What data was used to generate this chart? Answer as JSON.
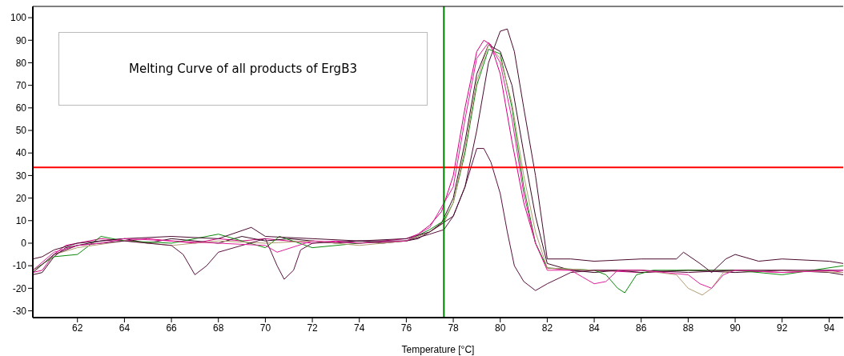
{
  "chart_data": {
    "type": "line",
    "title": "Melting Curve of all products of ErgB3",
    "xlabel": "Temperature [°C]",
    "xlim": [
      60.1,
      94.6
    ],
    "xticks": [
      62,
      64,
      66,
      68,
      70,
      72,
      74,
      76,
      78,
      80,
      82,
      84,
      86,
      88,
      90,
      92,
      94
    ],
    "ylim": [
      -33,
      105
    ],
    "yticks": [
      -30,
      -20,
      -10,
      0,
      10,
      20,
      30,
      40,
      50,
      60,
      70,
      80,
      90,
      100
    ],
    "marker": "none",
    "line_style": "solid",
    "ref_lines": [
      {
        "axis": "y",
        "value": 33.6,
        "color": "#ff0000"
      },
      {
        "axis": "x",
        "value": 77.6,
        "color": "#008000"
      }
    ],
    "series": [
      {
        "color": "#d4007f",
        "x": [
          60.1,
          60.5,
          61,
          61.5,
          62,
          63,
          64,
          65,
          66,
          67,
          68,
          69,
          70,
          71,
          72,
          73,
          74,
          75,
          76,
          76.5,
          77,
          77.5,
          78,
          78.5,
          79,
          79.3,
          79.6,
          80,
          80.5,
          81,
          81.5,
          82,
          83,
          84,
          86,
          88,
          90,
          92,
          94,
          94.6
        ],
        "values": [
          -13,
          -12,
          -5,
          -1,
          0,
          2,
          1,
          2,
          1,
          0,
          2,
          1,
          2,
          1,
          0,
          1,
          0,
          1,
          2,
          4,
          8,
          14,
          30,
          60,
          85,
          90,
          88,
          75,
          45,
          18,
          0,
          -11,
          -12,
          -12,
          -13,
          -12,
          -12,
          -13,
          -12,
          -13
        ]
      },
      {
        "color": "#3a0a24",
        "x": [
          60.1,
          60.5,
          61,
          61.5,
          62,
          63,
          64,
          65,
          66,
          67,
          68,
          69,
          70,
          71,
          72,
          73,
          74,
          75,
          76,
          76.5,
          77,
          77.5,
          78,
          78.5,
          79,
          79.5,
          80,
          80.5,
          81,
          81.5,
          82,
          83,
          84,
          85,
          86,
          88,
          90,
          92,
          94,
          94.6
        ],
        "values": [
          -14,
          -13,
          -6,
          -2,
          -1,
          1,
          2,
          0,
          2,
          1,
          0,
          3,
          1,
          2,
          1,
          0,
          1,
          0,
          1,
          2,
          5,
          9,
          20,
          45,
          75,
          88,
          85,
          70,
          40,
          12,
          -9,
          -12,
          -13,
          -12,
          -13,
          -12,
          -13,
          -12,
          -13,
          -14
        ]
      },
      {
        "color": "#0a8a0a",
        "x": [
          60.1,
          61,
          62,
          63,
          64,
          66,
          68,
          69,
          70,
          70.6,
          72,
          74,
          76,
          77,
          77.6,
          78,
          78.5,
          79,
          79.5,
          80,
          80.5,
          81,
          81.5,
          82,
          84,
          84.5,
          85,
          85.3,
          85.8,
          86.5,
          88,
          90,
          92,
          94.6
        ],
        "values": [
          -12,
          -6,
          -5,
          3,
          1,
          0,
          4,
          1,
          -2,
          3,
          -2,
          0,
          1,
          6,
          10,
          18,
          40,
          70,
          86,
          84,
          60,
          25,
          0,
          -11,
          -12,
          -14,
          -20,
          -22,
          -14,
          -12,
          -12,
          -12,
          -14,
          -10
        ]
      },
      {
        "color": "#b39c72",
        "x": [
          60.1,
          61,
          62,
          64,
          66,
          68,
          70,
          72,
          74,
          76,
          77,
          77.6,
          78,
          78.5,
          79,
          79.5,
          80,
          80.5,
          81,
          81.5,
          82,
          84,
          86,
          87.5,
          88,
          88.6,
          89,
          89.5,
          90,
          92,
          94.6
        ],
        "values": [
          -13,
          -5,
          -2,
          1,
          -1,
          1,
          0,
          1,
          -1,
          1,
          5,
          9,
          18,
          42,
          72,
          88,
          82,
          62,
          30,
          5,
          -11,
          -12,
          -12,
          -14,
          -20,
          -23,
          -20,
          -13,
          -12,
          -12,
          -13
        ]
      },
      {
        "color": "#5a1040",
        "x": [
          60.1,
          61,
          62,
          64,
          66,
          66.5,
          67,
          67.5,
          68,
          70,
          70.5,
          70.8,
          71.2,
          71.5,
          72,
          74,
          76,
          77,
          77.6,
          78,
          78.5,
          79,
          79.3,
          79.6,
          80,
          80.3,
          80.6,
          81,
          81.5,
          82,
          83,
          84,
          86,
          88,
          90,
          94.6
        ],
        "values": [
          -13,
          -5,
          -1,
          1,
          -1,
          -5,
          -14,
          -10,
          -4,
          2,
          -10,
          -16,
          -12,
          -3,
          0,
          1,
          1,
          4,
          6,
          12,
          25,
          42,
          42,
          36,
          22,
          5,
          -10,
          -17,
          -21,
          -18,
          -13,
          -12,
          -12,
          -13,
          -12,
          -12
        ]
      },
      {
        "color": "#4a0a30",
        "x": [
          60.1,
          60.5,
          61,
          62,
          64,
          66,
          68,
          69.4,
          70,
          72,
          74,
          76,
          77,
          78,
          78.5,
          79,
          79.5,
          80,
          80.3,
          80.6,
          81,
          81.5,
          82,
          83,
          84,
          86,
          87.5,
          87.8,
          88.5,
          89,
          89.6,
          90,
          91,
          92,
          94,
          94.6
        ],
        "values": [
          -7,
          -6,
          -3,
          0,
          2,
          3,
          2,
          7,
          3,
          2,
          1,
          2,
          5,
          12,
          25,
          50,
          80,
          94,
          95,
          85,
          60,
          30,
          -7,
          -7,
          -8,
          -7,
          -7,
          -4,
          -9,
          -13,
          -7,
          -5,
          -8,
          -7,
          -8,
          -9
        ]
      },
      {
        "color": "#e0209a",
        "x": [
          60.1,
          61,
          62,
          63,
          64,
          66,
          68,
          70,
          70.5,
          72,
          74,
          76,
          77,
          78,
          78.5,
          79,
          79.5,
          80,
          80.5,
          81,
          81.5,
          82,
          83,
          83.5,
          84,
          84.5,
          85,
          86,
          87,
          88,
          88.5,
          89,
          89.5,
          90,
          92,
          94.6
        ],
        "values": [
          -12,
          -4,
          -1,
          0,
          2,
          1,
          0,
          -1,
          -4,
          1,
          0,
          1,
          7,
          25,
          55,
          82,
          89,
          80,
          55,
          22,
          0,
          -12,
          -12,
          -15,
          -18,
          -17,
          -12,
          -12,
          -13,
          -14,
          -18,
          -20,
          -14,
          -12,
          -13,
          -12
        ]
      }
    ]
  }
}
